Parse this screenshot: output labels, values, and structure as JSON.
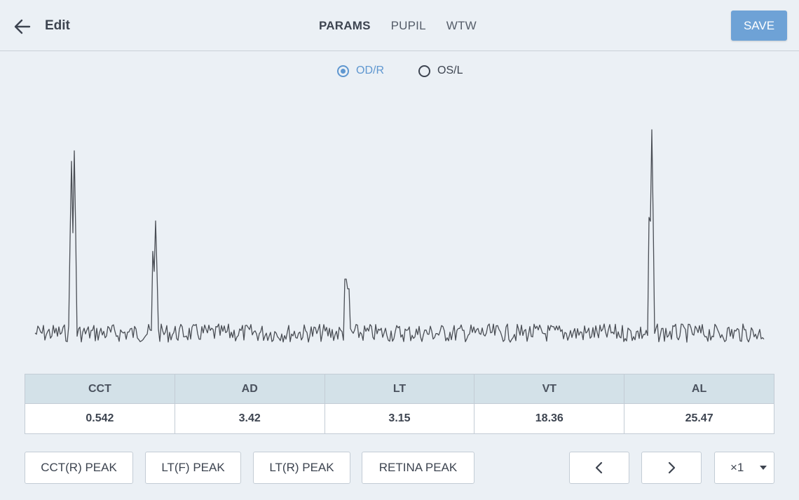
{
  "header": {
    "back_icon": "arrow-left-icon",
    "title": "Edit",
    "tabs": [
      {
        "label": "PARAMS",
        "active": true
      },
      {
        "label": "PUPIL",
        "active": false
      },
      {
        "label": "WTW",
        "active": false
      }
    ],
    "save_label": "SAVE"
  },
  "eye_selector": {
    "options": [
      {
        "label": "OD/R",
        "checked": true
      },
      {
        "label": "OS/L",
        "checked": false
      }
    ]
  },
  "measurements": {
    "headers": [
      "CCT",
      "AD",
      "LT",
      "VT",
      "AL"
    ],
    "values": [
      "0.542",
      "3.42",
      "3.15",
      "18.36",
      "25.47"
    ]
  },
  "actions": {
    "cct_peak": "CCT(R) PEAK",
    "ltf_peak": "LT(F) PEAK",
    "ltr_peak": "LT(R) PEAK",
    "retina_peak": "RETINA PEAK",
    "prev_icon": "chevron-left-icon",
    "next_icon": "chevron-right-icon",
    "zoom_value": "×1"
  },
  "colors": {
    "accent": "#5f97d0",
    "save_button": "#6ea2d6",
    "waveform": "#4a4e55",
    "table_header": "#d3e1e8",
    "background": "#ebf0f5"
  }
}
